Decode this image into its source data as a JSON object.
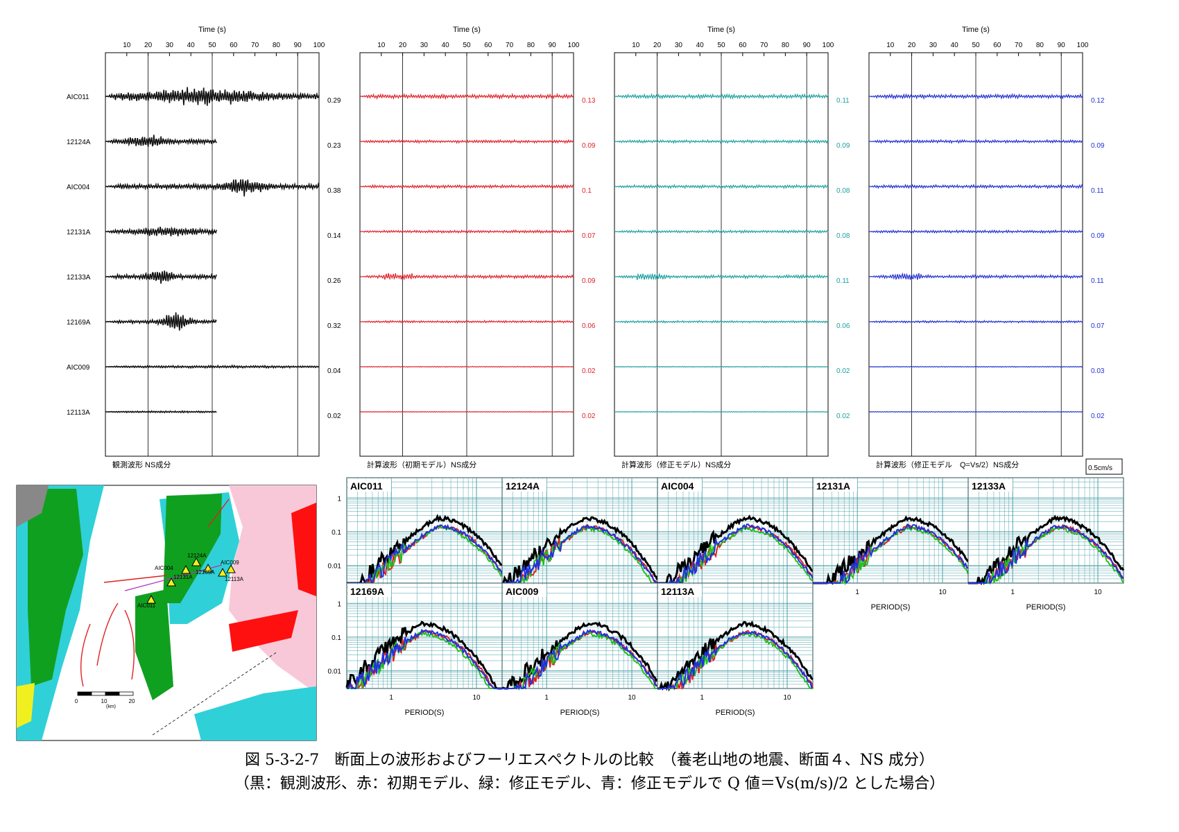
{
  "waveform_panels": [
    {
      "id": "obs",
      "x_label": "Time (s)",
      "panel_label": "観測波形 NS成分",
      "color": "#111111",
      "amplitudes": [
        "0.29",
        "0.23",
        "0.38",
        "0.14",
        "0.26",
        "0.32",
        "0.04",
        "0.02"
      ]
    },
    {
      "id": "initial",
      "x_label": "Time (s)",
      "panel_label": "計算波形（初期モデル）NS成分",
      "color": "#e0202a",
      "amplitudes": [
        "0.13",
        "0.09",
        "0.1",
        "0.07",
        "0.09",
        "0.06",
        "0.02",
        "0.02"
      ]
    },
    {
      "id": "modified",
      "x_label": "Time (s)",
      "panel_label": "計算波形（修正モデル）NS成分",
      "color": "#20a0a0",
      "amplitudes": [
        "0.11",
        "0.09",
        "0.08",
        "0.08",
        "0.11",
        "0.06",
        "0.02",
        "0.02"
      ]
    },
    {
      "id": "modq",
      "x_label": "Time (s)",
      "panel_label": "計算波形（修正モデル　Q=Vs/2）NS成分",
      "color": "#2030d0",
      "amplitudes": [
        "0.12",
        "0.09",
        "0.11",
        "0.09",
        "0.11",
        "0.07",
        "0.03",
        "0.02"
      ]
    }
  ],
  "time_ticks": [
    "10",
    "20",
    "30",
    "40",
    "50",
    "60",
    "70",
    "80",
    "90",
    "100"
  ],
  "stations": [
    "AIC011",
    "12124A",
    "AIC004",
    "12131A",
    "12133A",
    "12169A",
    "AIC009",
    "12113A"
  ],
  "scale_label": "0.5cm/s",
  "spectra": {
    "stations": [
      "AIC011",
      "12124A",
      "AIC004",
      "12131A",
      "12133A",
      "12169A",
      "AIC009",
      "12113A"
    ],
    "y_ticks": [
      "1",
      "0.1",
      "0.01"
    ],
    "x_ticks": [
      "1",
      "10"
    ],
    "x_label": "PERIOD(S)",
    "series_colors": {
      "observed": "#000000",
      "initial": "#e02020",
      "modified": "#20c020",
      "modified_q": "#2030e0"
    }
  },
  "map": {
    "stations": [
      "AIC011",
      "AIC004",
      "12124A",
      "12131A",
      "12169A",
      "AIC009",
      "12113A"
    ],
    "scale_ticks": [
      "0",
      "10",
      "20"
    ],
    "scale_unit": "(km)"
  },
  "caption": {
    "line1": "図 5-3-2-7　断面上の波形およびフーリエスペクトルの比較　（養老山地の地震、断面４、NS 成分）",
    "line2": "（黒：観測波形、赤：初期モデル、緑：修正モデル、青：修正モデルで Q 値＝Vs(m/s)/2 とした場合）"
  }
}
